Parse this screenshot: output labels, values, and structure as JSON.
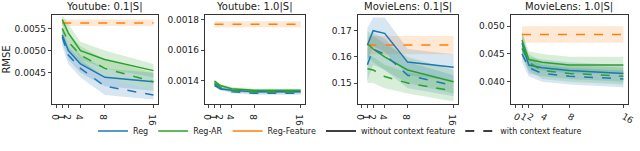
{
  "chart_data": [
    {
      "type": "line",
      "title": "Youtube: 0.1|S|",
      "y_label": "RMSE",
      "x": [
        1,
        2,
        4,
        8,
        16
      ],
      "xlim": [
        -0.7,
        16.7
      ],
      "xticks": [
        0,
        1,
        2,
        4,
        8,
        16
      ],
      "ylim": [
        0.0038,
        0.0058
      ],
      "yticks": [
        0.0045,
        {
          "value": 0.005,
          "label": "0.0050"
        },
        0.0055
      ],
      "grid": false,
      "series": [
        {
          "name": "Reg-Feature",
          "color": "#ff7f0e",
          "line_style": "dashed",
          "values": [
            0.00562,
            0.00562,
            0.00562,
            0.00562,
            0.00562
          ],
          "lower": [
            0.00555,
            0.00555,
            0.00555,
            0.00555,
            0.00555
          ],
          "upper": [
            0.0057,
            0.0057,
            0.0057,
            0.0057,
            0.0057
          ]
        },
        {
          "name": "Reg",
          "color": "#1f77b4",
          "line_style": "solid",
          "values": [
            0.00535,
            0.005,
            0.0047,
            0.0044,
            0.0043
          ],
          "lower": [
            0.0052,
            0.0048,
            0.0045,
            0.0042,
            0.0041
          ],
          "upper": [
            0.0055,
            0.0052,
            0.0049,
            0.0046,
            0.0045
          ]
        },
        {
          "name": "Reg-AR",
          "color": "#2ca02c",
          "line_style": "solid",
          "values": [
            0.0057,
            0.0054,
            0.005,
            0.0048,
            0.00455
          ],
          "lower": [
            0.0056,
            0.0052,
            0.0048,
            0.0046,
            0.0044
          ],
          "upper": [
            0.0058,
            0.0056,
            0.0052,
            0.005,
            0.0047
          ]
        },
        {
          "name": "Reg",
          "color": "#1f77b4",
          "line_style": "dashed",
          "values": [
            0.0053,
            0.0049,
            0.0046,
            0.0042,
            0.004
          ],
          "lower": [
            0.0051,
            0.0047,
            0.0044,
            0.004,
            0.0039
          ],
          "upper": [
            0.0055,
            0.0051,
            0.0048,
            0.0044,
            0.0041
          ]
        },
        {
          "name": "Reg-AR",
          "color": "#2ca02c",
          "line_style": "dashed",
          "values": [
            0.0055,
            0.0052,
            0.0049,
            0.0046,
            0.0043
          ],
          "lower": [
            0.0053,
            0.005,
            0.0047,
            0.0044,
            0.0041
          ],
          "upper": [
            0.0057,
            0.0054,
            0.0051,
            0.0048,
            0.0045
          ]
        }
      ]
    },
    {
      "type": "line",
      "title": "Youtube: 1.0|S|",
      "x": [
        1,
        2,
        4,
        8,
        16
      ],
      "xlim": [
        -0.7,
        16.7
      ],
      "xticks": [
        0,
        1,
        2,
        4,
        8,
        16
      ],
      "ylim": [
        0.00125,
        0.00183
      ],
      "yticks": [
        0.0014,
        0.0016,
        0.0018
      ],
      "grid": false,
      "series": [
        {
          "name": "Reg-Feature",
          "color": "#ff7f0e",
          "line_style": "dashed",
          "values": [
            0.00177,
            0.00177,
            0.00177,
            0.00177,
            0.00177
          ],
          "lower": [
            0.00175,
            0.00175,
            0.00175,
            0.00175,
            0.00175
          ],
          "upper": [
            0.00179,
            0.00179,
            0.00179,
            0.00179,
            0.00179
          ]
        },
        {
          "name": "Reg",
          "color": "#1f77b4",
          "line_style": "solid",
          "values": [
            0.00138,
            0.00135,
            0.00134,
            0.00133,
            0.00133
          ],
          "lower": [
            0.00137,
            0.00134,
            0.00133,
            0.00132,
            0.00132
          ],
          "upper": [
            0.00139,
            0.00136,
            0.00135,
            0.00134,
            0.00134
          ]
        },
        {
          "name": "Reg-AR",
          "color": "#2ca02c",
          "line_style": "solid",
          "values": [
            0.0014,
            0.00137,
            0.00135,
            0.00134,
            0.00134
          ],
          "lower": [
            0.00139,
            0.00136,
            0.00134,
            0.00133,
            0.00133
          ],
          "upper": [
            0.00141,
            0.00138,
            0.00136,
            0.00135,
            0.00135
          ]
        },
        {
          "name": "Reg",
          "color": "#1f77b4",
          "line_style": "dashed",
          "values": [
            0.00137,
            0.00135,
            0.00133,
            0.00132,
            0.00132
          ],
          "lower": [
            0.00136,
            0.00134,
            0.00132,
            0.00131,
            0.00131
          ],
          "upper": [
            0.00138,
            0.00136,
            0.00134,
            0.00133,
            0.00133
          ]
        },
        {
          "name": "Reg-AR",
          "color": "#2ca02c",
          "line_style": "dashed",
          "values": [
            0.00139,
            0.00136,
            0.00134,
            0.00133,
            0.00133
          ],
          "lower": [
            0.00138,
            0.00135,
            0.00133,
            0.00132,
            0.00132
          ],
          "upper": [
            0.0014,
            0.00137,
            0.00135,
            0.00134,
            0.00134
          ]
        }
      ]
    },
    {
      "type": "line",
      "title": "MovieLens: 0.1|S|",
      "x": [
        1,
        2,
        4,
        8,
        16
      ],
      "xlim": [
        -0.7,
        16.7
      ],
      "xticks": [
        0,
        1,
        2,
        4,
        8,
        16
      ],
      "ylim": [
        0.142,
        0.176
      ],
      "yticks": [
        0.15,
        0.16,
        0.17
      ],
      "grid": false,
      "series": [
        {
          "name": "Reg-Feature",
          "color": "#ff7f0e",
          "line_style": "dashed",
          "values": [
            0.1645,
            0.1645,
            0.1645,
            0.1645,
            0.1645
          ],
          "lower": [
            0.161,
            0.161,
            0.161,
            0.161,
            0.161
          ],
          "upper": [
            0.168,
            0.168,
            0.168,
            0.168,
            0.168
          ]
        },
        {
          "name": "Reg",
          "color": "#1f77b4",
          "line_style": "solid",
          "values": [
            0.1645,
            0.17,
            0.169,
            0.158,
            0.156
          ],
          "lower": [
            0.158,
            0.164,
            0.162,
            0.153,
            0.151
          ],
          "upper": [
            0.171,
            0.175,
            0.175,
            0.163,
            0.161
          ]
        },
        {
          "name": "Reg-AR",
          "color": "#2ca02c",
          "line_style": "solid",
          "values": [
            0.165,
            0.163,
            0.16,
            0.155,
            0.1505
          ],
          "lower": [
            0.16,
            0.158,
            0.155,
            0.15,
            0.146
          ],
          "upper": [
            0.17,
            0.168,
            0.165,
            0.16,
            0.155
          ]
        },
        {
          "name": "Reg",
          "color": "#1f77b4",
          "line_style": "dashed",
          "values": [
            0.157,
            0.163,
            0.161,
            0.153,
            0.149
          ],
          "lower": [
            0.151,
            0.157,
            0.155,
            0.148,
            0.145
          ],
          "upper": [
            0.163,
            0.169,
            0.167,
            0.158,
            0.153
          ]
        },
        {
          "name": "Reg-AR",
          "color": "#2ca02c",
          "line_style": "dashed",
          "values": [
            0.1555,
            0.155,
            0.1525,
            0.15,
            0.147
          ],
          "lower": [
            0.15,
            0.15,
            0.148,
            0.146,
            0.143
          ],
          "upper": [
            0.161,
            0.16,
            0.157,
            0.154,
            0.151
          ]
        }
      ]
    },
    {
      "type": "line",
      "title": "MovieLens: 1.0|S|",
      "x": [
        1,
        2,
        4,
        8,
        16
      ],
      "xlim": [
        -0.7,
        16.7
      ],
      "xticks": [
        0,
        1,
        2,
        4,
        8,
        16
      ],
      "ylim": [
        0.036,
        0.052
      ],
      "yticks": [
        {
          "value": 0.04,
          "label": "0.040"
        },
        0.045,
        {
          "value": 0.05,
          "label": "0.050"
        }
      ],
      "grid": false,
      "series": [
        {
          "name": "Reg-Feature",
          "color": "#ff7f0e",
          "line_style": "dashed",
          "values": [
            0.0485,
            0.0485,
            0.0485,
            0.0485,
            0.0485
          ],
          "lower": [
            0.047,
            0.047,
            0.047,
            0.047,
            0.047
          ],
          "upper": [
            0.05,
            0.05,
            0.05,
            0.05,
            0.05
          ]
        },
        {
          "name": "Reg",
          "color": "#1f77b4",
          "line_style": "solid",
          "values": [
            0.047,
            0.043,
            0.0425,
            0.042,
            0.0415
          ],
          "lower": [
            0.045,
            0.0415,
            0.041,
            0.0405,
            0.04
          ],
          "upper": [
            0.049,
            0.0445,
            0.044,
            0.0435,
            0.043
          ]
        },
        {
          "name": "Reg-AR",
          "color": "#2ca02c",
          "line_style": "solid",
          "values": [
            0.0475,
            0.044,
            0.0435,
            0.043,
            0.043
          ],
          "lower": [
            0.046,
            0.0425,
            0.042,
            0.0415,
            0.0415
          ],
          "upper": [
            0.049,
            0.0455,
            0.045,
            0.0445,
            0.0445
          ]
        },
        {
          "name": "Reg",
          "color": "#1f77b4",
          "line_style": "dashed",
          "values": [
            0.045,
            0.0425,
            0.0415,
            0.041,
            0.0405
          ],
          "lower": [
            0.0435,
            0.041,
            0.04,
            0.0395,
            0.039
          ],
          "upper": [
            0.0465,
            0.044,
            0.043,
            0.0425,
            0.042
          ]
        },
        {
          "name": "Reg-AR",
          "color": "#2ca02c",
          "line_style": "dashed",
          "values": [
            0.046,
            0.0435,
            0.042,
            0.0415,
            0.041
          ],
          "lower": [
            0.0445,
            0.042,
            0.0405,
            0.04,
            0.0395
          ],
          "upper": [
            0.0475,
            0.045,
            0.0435,
            0.043,
            0.0425
          ]
        }
      ]
    }
  ],
  "legend": "bottom",
  "legend_items": [
    {
      "label": "Reg",
      "color": "#1f77b4",
      "line_style": "solid"
    },
    {
      "label": "Reg-AR",
      "color": "#2ca02c",
      "line_style": "solid"
    },
    {
      "label": "Reg-Feature",
      "color": "#ff7f0e",
      "line_style": "solid"
    },
    {
      "label": "without context feature",
      "color": "#000000",
      "line_style": "solid"
    },
    {
      "label": "with context feature",
      "color": "#000000",
      "line_style": "dashed"
    }
  ]
}
